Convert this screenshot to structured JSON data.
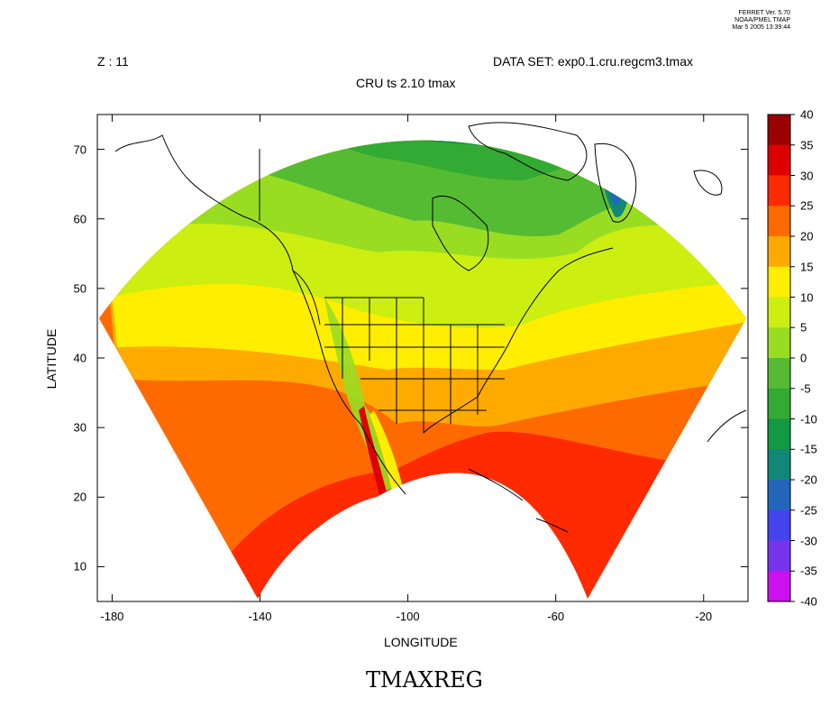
{
  "header": {
    "stamp": [
      "FERRET Ver. 5.70",
      "NOAA/PMEL TMAP",
      "Mar  5 2005 13:39:44"
    ],
    "z_label": "Z : 11",
    "dataset_label": "DATA SET: exp0.1.cru.regcm3.tmax",
    "subtitle": "CRU ts 2.10 tmax"
  },
  "axes": {
    "xlabel": "LONGITUDE",
    "ylabel": "LATITUDE",
    "x_range": [
      -184,
      -8
    ],
    "y_range": [
      5,
      75
    ],
    "x_ticks": [
      {
        "v": -180,
        "label": "-180"
      },
      {
        "v": -140,
        "label": "-140"
      },
      {
        "v": -100,
        "label": "-100"
      },
      {
        "v": -60,
        "label": "-60"
      },
      {
        "v": -20,
        "label": "-20"
      }
    ],
    "y_ticks": [
      {
        "v": 10,
        "label": "10"
      },
      {
        "v": 20,
        "label": "20"
      },
      {
        "v": 30,
        "label": "30"
      },
      {
        "v": 40,
        "label": "40"
      },
      {
        "v": 50,
        "label": "50"
      },
      {
        "v": 60,
        "label": "60"
      },
      {
        "v": 70,
        "label": "70"
      }
    ]
  },
  "colorbar": {
    "levels": [
      {
        "label": "40"
      },
      {
        "label": "35"
      },
      {
        "label": "30"
      },
      {
        "label": "25"
      },
      {
        "label": "20"
      },
      {
        "label": "15"
      },
      {
        "label": "10"
      },
      {
        "label": "5"
      },
      {
        "label": "0"
      },
      {
        "label": "-5"
      },
      {
        "label": "-10"
      },
      {
        "label": "-15"
      },
      {
        "label": "-20"
      },
      {
        "label": "-25"
      },
      {
        "label": "-30"
      },
      {
        "label": "-35"
      },
      {
        "label": "-40"
      }
    ],
    "colors": [
      "#9b0000",
      "#dd0000",
      "#ff2a00",
      "#ff6a00",
      "#ffaa00",
      "#ffee00",
      "#ccee11",
      "#99dd22",
      "#55bb33",
      "#33aa33",
      "#119944",
      "#118877",
      "#2266bb",
      "#4444ee",
      "#7733ee",
      "#cc11ee"
    ]
  },
  "bottom_title": "TMAXREG"
}
